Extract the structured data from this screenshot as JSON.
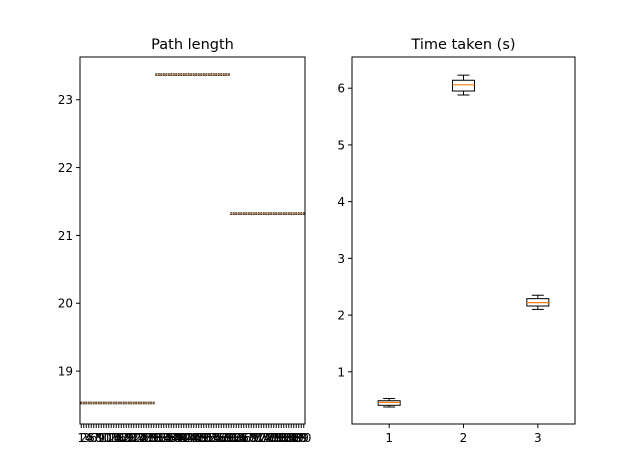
{
  "chart_data": [
    {
      "type": "box",
      "title": "Path length",
      "xlabel": "",
      "ylabel": "",
      "ylim": [
        18.22,
        23.63
      ],
      "yticks": [
        19,
        20,
        21,
        22,
        23
      ],
      "groups": [
        {
          "x_from": 1,
          "x_to": 30,
          "value": 18.53
        },
        {
          "x_from": 31,
          "x_to": 60,
          "value": 23.37
        },
        {
          "x_from": 61,
          "x_to": 90,
          "value": 21.32
        }
      ],
      "note_xticks": "90 overlapping integer tick labels 1..90 along x axis"
    },
    {
      "type": "box",
      "title": "Time taken (s)",
      "xlabel": "",
      "ylabel": "",
      "categories": [
        "1",
        "2",
        "3"
      ],
      "ylim": [
        0.08,
        6.55
      ],
      "yticks": [
        1,
        2,
        3,
        4,
        5,
        6
      ],
      "boxes": [
        {
          "whislo": 0.38,
          "q1": 0.41,
          "med": 0.46,
          "q3": 0.49,
          "whishi": 0.53
        },
        {
          "whislo": 5.88,
          "q1": 5.95,
          "med": 6.06,
          "q3": 6.14,
          "whishi": 6.23
        },
        {
          "whislo": 2.1,
          "q1": 2.16,
          "med": 2.22,
          "q3": 2.29,
          "whishi": 2.35
        }
      ]
    }
  ],
  "colors": {
    "box": "#000000",
    "median": "#ff7f0e",
    "axes": "#000000",
    "background": "#ffffff"
  }
}
